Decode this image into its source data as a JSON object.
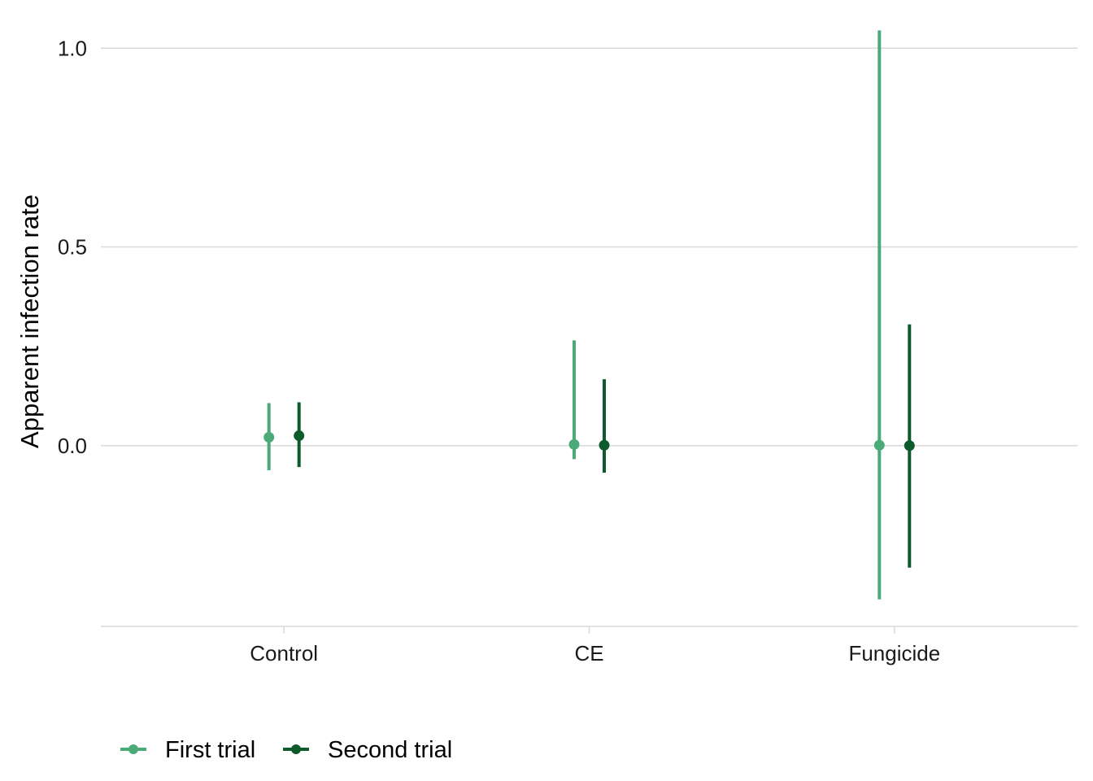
{
  "chart_data": {
    "type": "pointrange",
    "title": "",
    "xlabel": "",
    "ylabel": "Apparent infection rate",
    "categories": [
      "Control",
      "CE",
      "Fungicide"
    ],
    "y_ticks": [
      0.0,
      0.5,
      1.0
    ],
    "y_tick_labels": [
      "0.0",
      "0.5",
      "1.0"
    ],
    "ylim": [
      -0.455,
      1.06
    ],
    "grid": "horizontal-major",
    "legend_position": "bottom-left",
    "series": [
      {
        "name": "First trial",
        "color": "#4aaa78",
        "points": [
          {
            "category": "Control",
            "y": 0.021,
            "lower": -0.062,
            "upper": 0.107
          },
          {
            "category": "CE",
            "y": 0.003,
            "lower": -0.034,
            "upper": 0.265
          },
          {
            "category": "Fungicide",
            "y": 0.001,
            "lower": -0.387,
            "upper": 1.045
          }
        ]
      },
      {
        "name": "Second trial",
        "color": "#0d5a2c",
        "points": [
          {
            "category": "Control",
            "y": 0.025,
            "lower": -0.054,
            "upper": 0.109
          },
          {
            "category": "CE",
            "y": 0.001,
            "lower": -0.068,
            "upper": 0.167
          },
          {
            "category": "Fungicide",
            "y": 0.0,
            "lower": -0.307,
            "upper": 0.305
          }
        ]
      }
    ]
  }
}
